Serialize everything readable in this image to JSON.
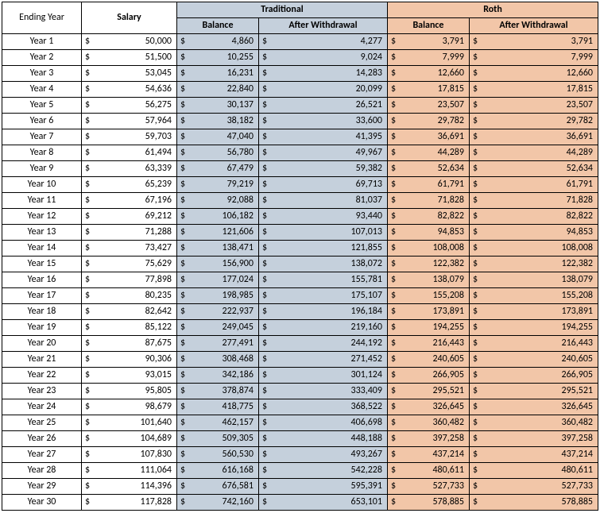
{
  "colors": {
    "traditional_bg": "#c5d0dc",
    "roth_bg": "#f2c6a8",
    "border": "#000000",
    "background": "#ffffff"
  },
  "headers": {
    "ending_year": "Ending Year",
    "salary": "Salary",
    "traditional": "Traditional",
    "roth": "Roth",
    "balance": "Balance",
    "after_withdrawal": "After Withdrawal"
  },
  "currency_symbol": "$",
  "rows": [
    {
      "year": "Year 1",
      "salary": "50,000",
      "t_bal": "4,860",
      "t_aw": "4,277",
      "r_bal": "3,791",
      "r_aw": "3,791"
    },
    {
      "year": "Year 2",
      "salary": "51,500",
      "t_bal": "10,255",
      "t_aw": "9,024",
      "r_bal": "7,999",
      "r_aw": "7,999"
    },
    {
      "year": "Year 3",
      "salary": "53,045",
      "t_bal": "16,231",
      "t_aw": "14,283",
      "r_bal": "12,660",
      "r_aw": "12,660"
    },
    {
      "year": "Year 4",
      "salary": "54,636",
      "t_bal": "22,840",
      "t_aw": "20,099",
      "r_bal": "17,815",
      "r_aw": "17,815"
    },
    {
      "year": "Year 5",
      "salary": "56,275",
      "t_bal": "30,137",
      "t_aw": "26,521",
      "r_bal": "23,507",
      "r_aw": "23,507"
    },
    {
      "year": "Year 6",
      "salary": "57,964",
      "t_bal": "38,182",
      "t_aw": "33,600",
      "r_bal": "29,782",
      "r_aw": "29,782"
    },
    {
      "year": "Year 7",
      "salary": "59,703",
      "t_bal": "47,040",
      "t_aw": "41,395",
      "r_bal": "36,691",
      "r_aw": "36,691"
    },
    {
      "year": "Year 8",
      "salary": "61,494",
      "t_bal": "56,780",
      "t_aw": "49,967",
      "r_bal": "44,289",
      "r_aw": "44,289"
    },
    {
      "year": "Year 9",
      "salary": "63,339",
      "t_bal": "67,479",
      "t_aw": "59,382",
      "r_bal": "52,634",
      "r_aw": "52,634"
    },
    {
      "year": "Year 10",
      "salary": "65,239",
      "t_bal": "79,219",
      "t_aw": "69,713",
      "r_bal": "61,791",
      "r_aw": "61,791"
    },
    {
      "year": "Year 11",
      "salary": "67,196",
      "t_bal": "92,088",
      "t_aw": "81,037",
      "r_bal": "71,828",
      "r_aw": "71,828"
    },
    {
      "year": "Year 12",
      "salary": "69,212",
      "t_bal": "106,182",
      "t_aw": "93,440",
      "r_bal": "82,822",
      "r_aw": "82,822"
    },
    {
      "year": "Year 13",
      "salary": "71,288",
      "t_bal": "121,606",
      "t_aw": "107,013",
      "r_bal": "94,853",
      "r_aw": "94,853"
    },
    {
      "year": "Year 14",
      "salary": "73,427",
      "t_bal": "138,471",
      "t_aw": "121,855",
      "r_bal": "108,008",
      "r_aw": "108,008"
    },
    {
      "year": "Year 15",
      "salary": "75,629",
      "t_bal": "156,900",
      "t_aw": "138,072",
      "r_bal": "122,382",
      "r_aw": "122,382"
    },
    {
      "year": "Year 16",
      "salary": "77,898",
      "t_bal": "177,024",
      "t_aw": "155,781",
      "r_bal": "138,079",
      "r_aw": "138,079"
    },
    {
      "year": "Year 17",
      "salary": "80,235",
      "t_bal": "198,985",
      "t_aw": "175,107",
      "r_bal": "155,208",
      "r_aw": "155,208"
    },
    {
      "year": "Year 18",
      "salary": "82,642",
      "t_bal": "222,937",
      "t_aw": "196,184",
      "r_bal": "173,891",
      "r_aw": "173,891"
    },
    {
      "year": "Year 19",
      "salary": "85,122",
      "t_bal": "249,045",
      "t_aw": "219,160",
      "r_bal": "194,255",
      "r_aw": "194,255"
    },
    {
      "year": "Year 20",
      "salary": "87,675",
      "t_bal": "277,491",
      "t_aw": "244,192",
      "r_bal": "216,443",
      "r_aw": "216,443"
    },
    {
      "year": "Year 21",
      "salary": "90,306",
      "t_bal": "308,468",
      "t_aw": "271,452",
      "r_bal": "240,605",
      "r_aw": "240,605"
    },
    {
      "year": "Year 22",
      "salary": "93,015",
      "t_bal": "342,186",
      "t_aw": "301,124",
      "r_bal": "266,905",
      "r_aw": "266,905"
    },
    {
      "year": "Year 23",
      "salary": "95,805",
      "t_bal": "378,874",
      "t_aw": "333,409",
      "r_bal": "295,521",
      "r_aw": "295,521"
    },
    {
      "year": "Year 24",
      "salary": "98,679",
      "t_bal": "418,775",
      "t_aw": "368,522",
      "r_bal": "326,645",
      "r_aw": "326,645"
    },
    {
      "year": "Year 25",
      "salary": "101,640",
      "t_bal": "462,157",
      "t_aw": "406,698",
      "r_bal": "360,482",
      "r_aw": "360,482"
    },
    {
      "year": "Year 26",
      "salary": "104,689",
      "t_bal": "509,305",
      "t_aw": "448,188",
      "r_bal": "397,258",
      "r_aw": "397,258"
    },
    {
      "year": "Year 27",
      "salary": "107,830",
      "t_bal": "560,530",
      "t_aw": "493,267",
      "r_bal": "437,214",
      "r_aw": "437,214"
    },
    {
      "year": "Year 28",
      "salary": "111,064",
      "t_bal": "616,168",
      "t_aw": "542,228",
      "r_bal": "480,611",
      "r_aw": "480,611"
    },
    {
      "year": "Year 29",
      "salary": "114,396",
      "t_bal": "676,581",
      "t_aw": "595,391",
      "r_bal": "527,733",
      "r_aw": "527,733"
    },
    {
      "year": "Year 30",
      "salary": "117,828",
      "t_bal": "742,160",
      "t_aw": "653,101",
      "r_bal": "578,885",
      "r_aw": "578,885"
    }
  ]
}
